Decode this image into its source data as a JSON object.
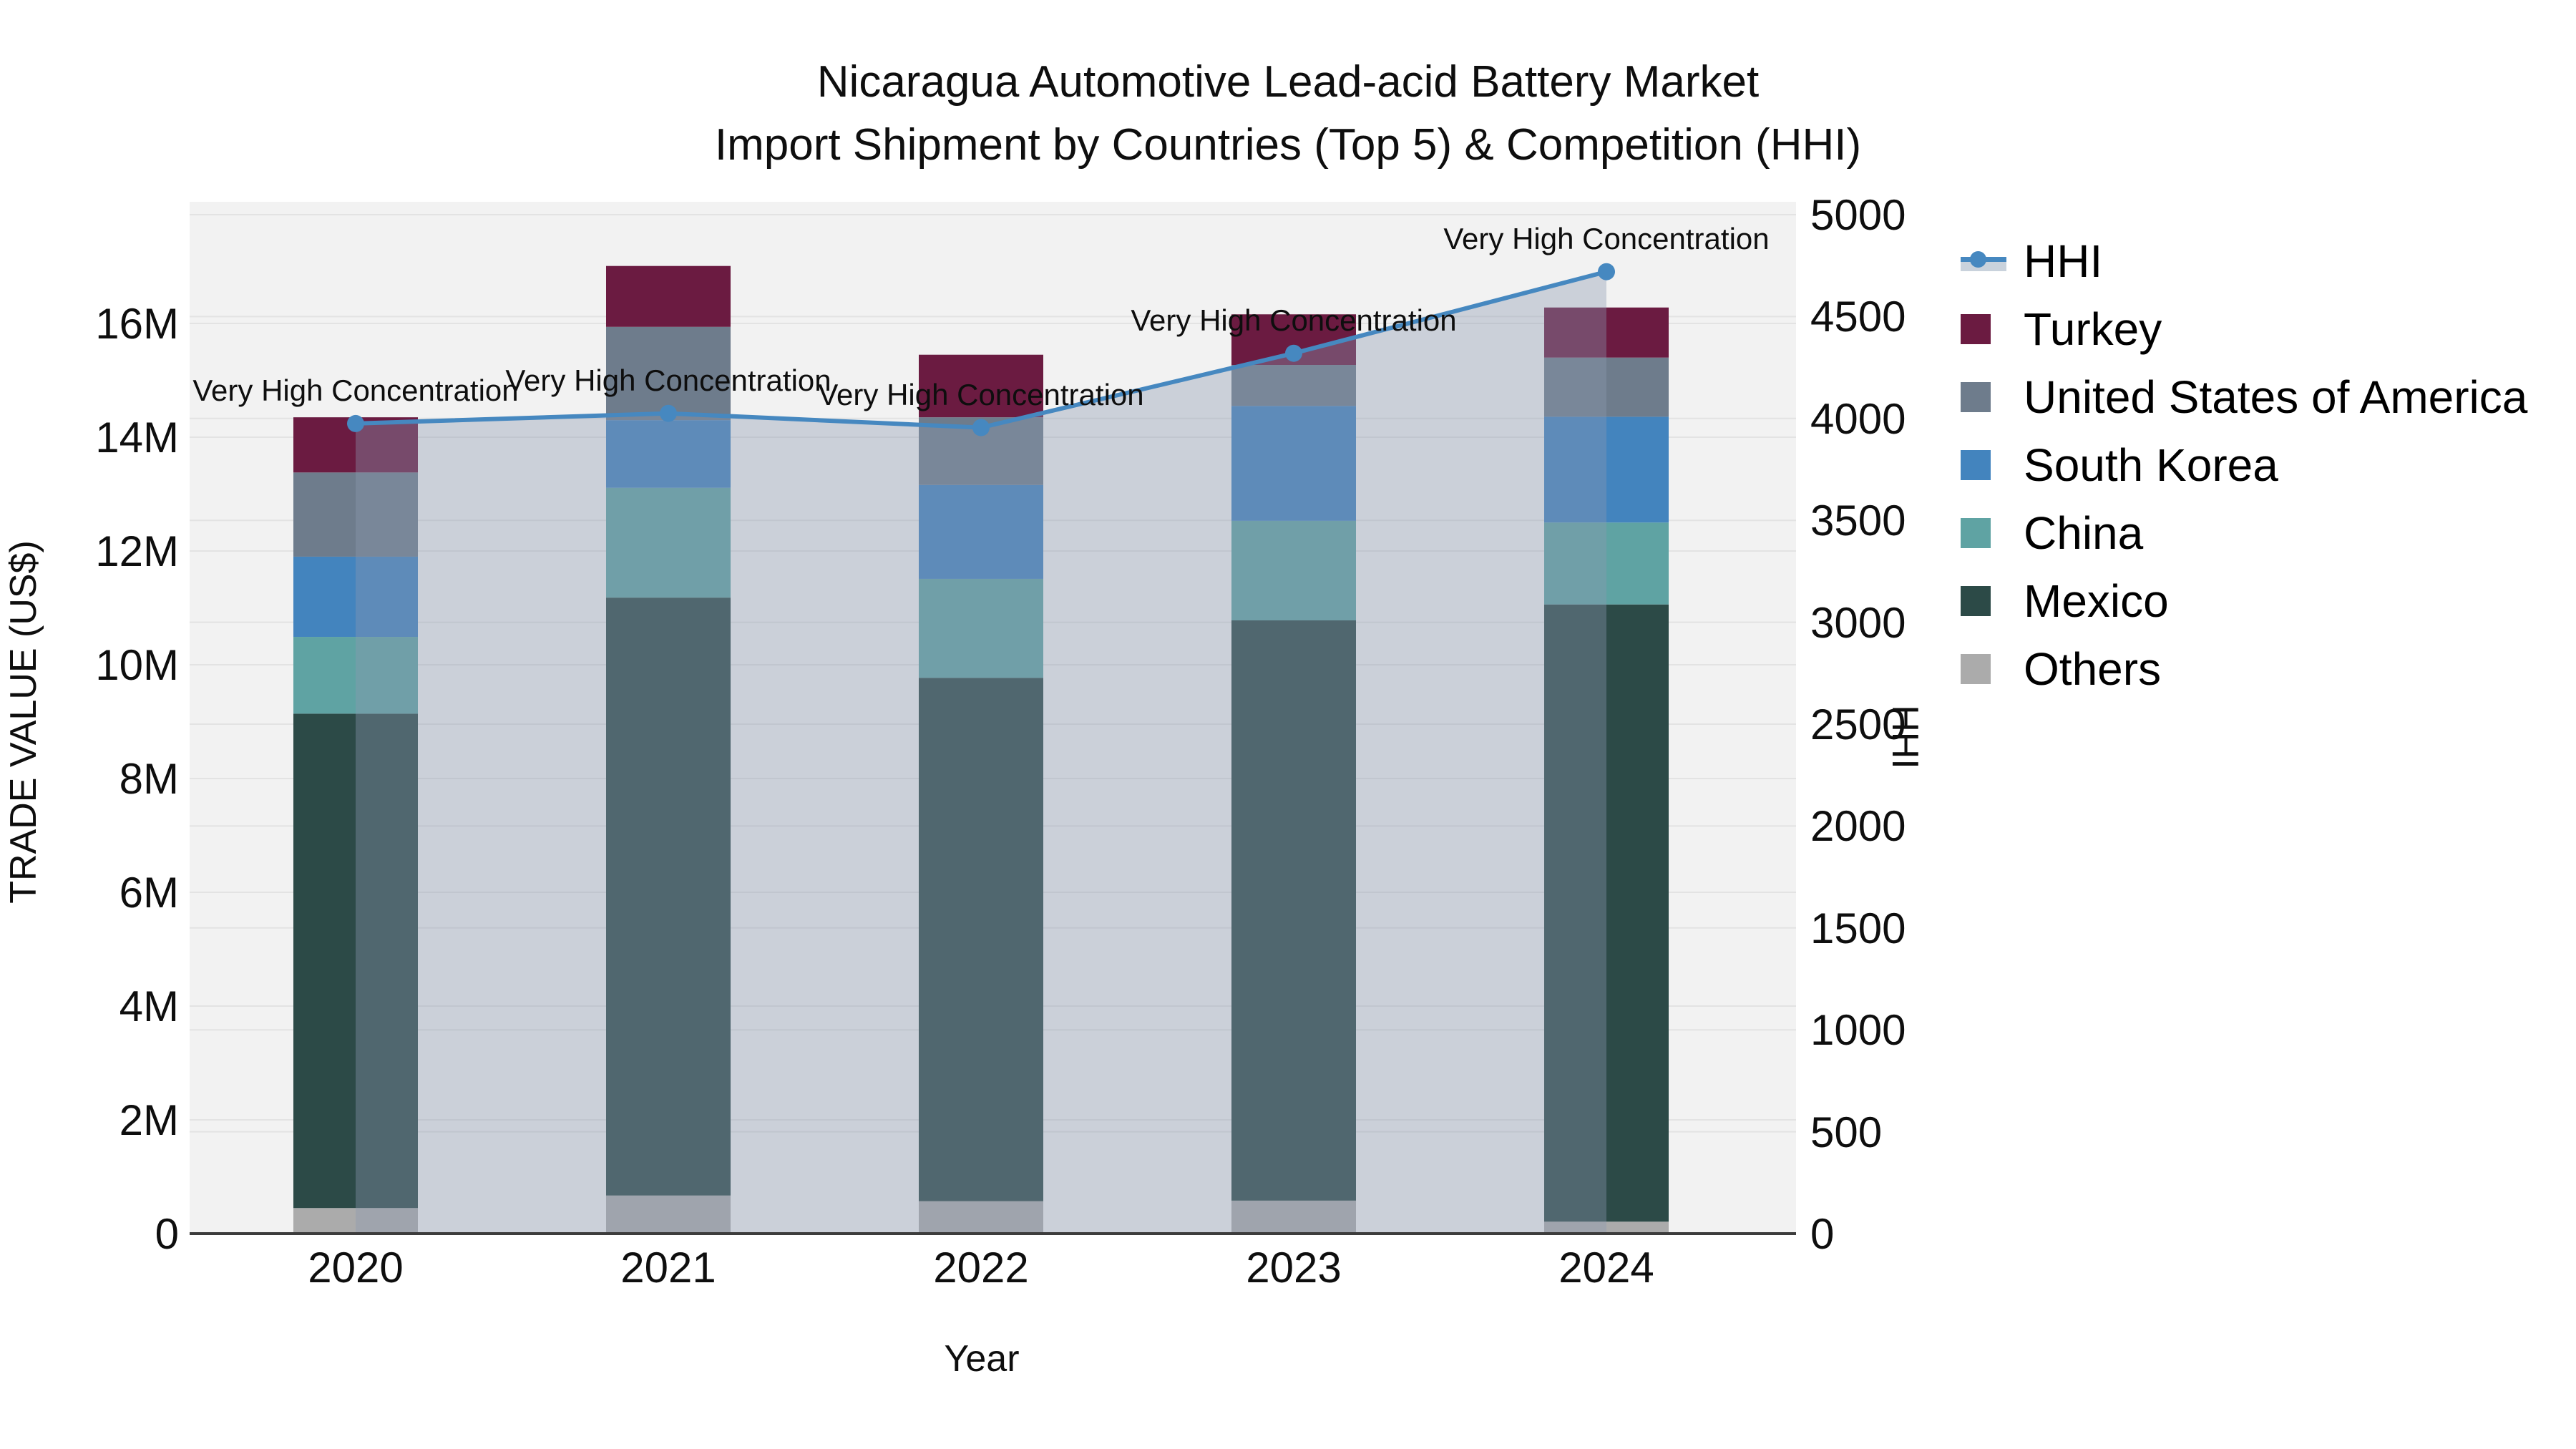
{
  "title": {
    "line1": "Nicaragua Automotive Lead-acid Battery Market",
    "line2": "Import Shipment by Countries (Top 5) & Competition (HHI)"
  },
  "axes": {
    "x": {
      "title": "Year",
      "categories": [
        "2020",
        "2021",
        "2022",
        "2023",
        "2024"
      ]
    },
    "y_left": {
      "title": "TRADE VALUE (US$)",
      "ticks": [
        "0",
        "2M",
        "4M",
        "6M",
        "8M",
        "10M",
        "12M",
        "14M",
        "16M"
      ]
    },
    "y_right": {
      "title": "HHI",
      "ticks": [
        "0",
        "500",
        "1000",
        "1500",
        "2000",
        "2500",
        "3000",
        "3500",
        "4000",
        "4500",
        "5000"
      ]
    }
  },
  "legend": {
    "items": [
      {
        "label": "HHI",
        "type": "line",
        "color": "#4688C0",
        "fill": "#C9D2DC"
      },
      {
        "label": "Turkey",
        "type": "bar",
        "color": "#6B1B41"
      },
      {
        "label": "United States of America",
        "type": "bar",
        "color": "#6E7C8C"
      },
      {
        "label": "South Korea",
        "type": "bar",
        "color": "#4384BE"
      },
      {
        "label": "China",
        "type": "bar",
        "color": "#5FA3A3"
      },
      {
        "label": "Mexico",
        "type": "bar",
        "color": "#2C4A47"
      },
      {
        "label": "Others",
        "type": "bar",
        "color": "#ABABAB"
      }
    ]
  },
  "colors": {
    "plot_bg": "#F2F2F2",
    "gridline": "#E3E3E3",
    "axis_line": "#3C3C3C",
    "hhi_line": "#4688C0",
    "hhi_fill_overlay": "rgba(140,153,175,0.38)"
  },
  "chart_data": {
    "type": "combo-stacked-bar-line",
    "title": "Nicaragua Automotive Lead-acid Battery Market — Import Shipment by Countries (Top 5) & Competition (HHI)",
    "categories": [
      "2020",
      "2021",
      "2022",
      "2023",
      "2024"
    ],
    "bar_value_unit": "million US$",
    "stack_order": "bottom to top",
    "series": [
      {
        "name": "Others",
        "color": "#ABABAB",
        "values_musd": [
          0.45,
          0.67,
          0.57,
          0.58,
          0.21
        ]
      },
      {
        "name": "Mexico",
        "color": "#2C4A47",
        "values_musd": [
          8.69,
          10.51,
          9.2,
          10.2,
          10.85
        ]
      },
      {
        "name": "China",
        "color": "#5FA3A3",
        "values_musd": [
          1.35,
          1.93,
          1.74,
          1.75,
          1.44
        ]
      },
      {
        "name": "South Korea",
        "color": "#4384BE",
        "values_musd": [
          1.41,
          1.19,
          1.65,
          2.02,
          1.86
        ]
      },
      {
        "name": "United States of America",
        "color": "#6E7C8C",
        "values_musd": [
          1.48,
          1.64,
          1.19,
          0.72,
          1.04
        ]
      },
      {
        "name": "Turkey",
        "color": "#6B1B41",
        "values_musd": [
          0.97,
          1.07,
          1.1,
          0.89,
          0.88
        ]
      }
    ],
    "bar_totals_musd": [
      14.35,
      17.01,
      15.45,
      16.16,
      16.28
    ],
    "line": {
      "name": "HHI",
      "color": "#4688C0",
      "fill_color": "rgba(140,153,175,0.38)",
      "values": [
        3975,
        4025,
        3955,
        4320,
        4720
      ],
      "annotations": [
        "Very High Concentration",
        "Very High Concentration",
        "Very High Concentration",
        "Very High Concentration",
        "Very High Concentration"
      ]
    },
    "xlabel": "Year",
    "ylabel_left": "TRADE VALUE (US$)",
    "ylabel_right": "HHI",
    "ylim_left_musd": [
      0,
      18.14
    ],
    "ylim_right": [
      0,
      5060
    ],
    "grid": true,
    "legend_position": "right-top"
  }
}
